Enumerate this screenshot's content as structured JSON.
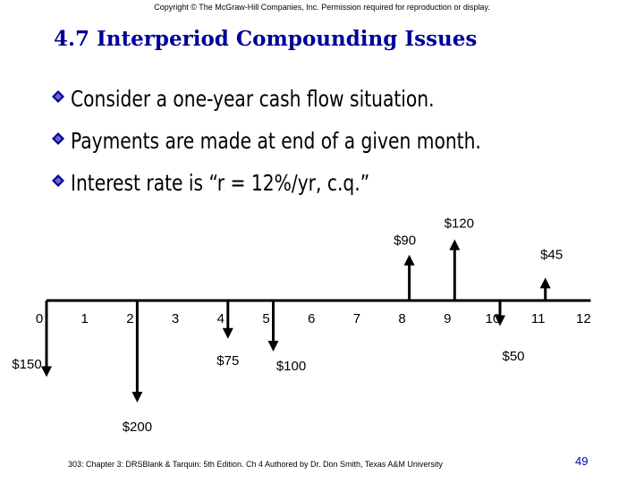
{
  "copyright": "Copyright © The McGraw-Hill Companies, Inc. Permission required for reproduction or display.",
  "title": "4.7 Interperiod Compounding Issues",
  "bullets": [
    "Consider a one-year cash flow situation.",
    "Payments are made at end of a given month.",
    "Interest rate is “r = 12%/yr, c.q.”"
  ],
  "colors": {
    "title": "#000099",
    "bullet_icon": "#000099",
    "page_number": "#000099",
    "arrows": "#000000"
  },
  "chart_data": {
    "type": "cash_flow_diagram",
    "periods": [
      "0",
      "1",
      "2",
      "3",
      "4",
      "5",
      "6",
      "7",
      "8",
      "9",
      "10",
      "11",
      "12"
    ],
    "flows": [
      {
        "period": 0,
        "amount": -150,
        "label": "$150"
      },
      {
        "period": 2,
        "amount": -200,
        "label": "$200"
      },
      {
        "period": 4,
        "amount": -75,
        "label": "$75"
      },
      {
        "period": 5,
        "amount": -100,
        "label": "$100"
      },
      {
        "period": 8,
        "amount": 90,
        "label": "$90"
      },
      {
        "period": 9,
        "amount": 120,
        "label": "$120"
      },
      {
        "period": 10,
        "amount": -50,
        "label": "$50"
      },
      {
        "period": 11,
        "amount": 45,
        "label": "$45"
      }
    ]
  },
  "footer": "303: Chapter 3: DRSBlank & Tarquin: 5th Edition. Ch 4 Authored by Dr. Don Smith, Texas A&M University",
  "page_number": "49"
}
